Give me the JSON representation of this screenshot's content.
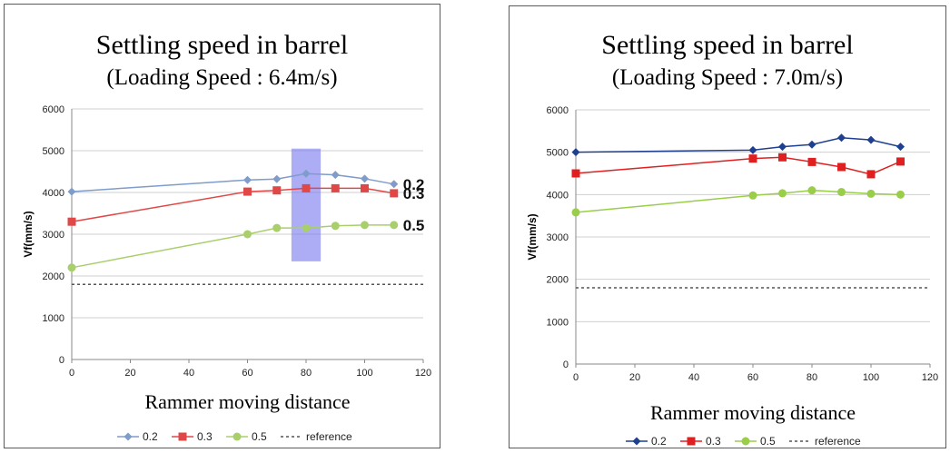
{
  "charts": [
    {
      "id": "left",
      "title": "Settling speed in barrel",
      "subtitle": "(Loading Speed : 6.4m/s)",
      "chart_data": {
        "type": "line",
        "title": "Settling speed in barrel",
        "subtitle": "(Loading Speed : 6.4m/s)",
        "xlabel": "Rammer moving distance",
        "ylabel": "Vf(mm/s)",
        "xlim": [
          0,
          120
        ],
        "ylim": [
          0,
          6000
        ],
        "xticks": [
          0,
          20,
          40,
          60,
          80,
          100,
          120
        ],
        "yticks": [
          0,
          1000,
          2000,
          3000,
          4000,
          5000,
          6000
        ],
        "grid": "horizontal",
        "legend_position": "bottom",
        "series": [
          {
            "name": "0.2",
            "color": "#7f9ccb",
            "marker": "diamond",
            "x": [
              0,
              60,
              70,
              80,
              90,
              100,
              110
            ],
            "y": [
              4020,
              4300,
              4320,
              4450,
              4420,
              4330,
              4200
            ]
          },
          {
            "name": "0.3",
            "color": "#e04848",
            "marker": "square",
            "x": [
              0,
              60,
              70,
              80,
              90,
              100,
              110
            ],
            "y": [
              3300,
              4020,
              4050,
              4100,
              4100,
              4100,
              3980
            ]
          },
          {
            "name": "0.5",
            "color": "#a8cf6c",
            "marker": "circle",
            "x": [
              0,
              60,
              70,
              80,
              90,
              100,
              110
            ],
            "y": [
              2200,
              3000,
              3150,
              3150,
              3200,
              3220,
              3220
            ]
          }
        ],
        "reference": {
          "name": "reference",
          "y": 1800,
          "color": "#555555"
        },
        "annotations": [
          "0.2",
          "0.3",
          "0.5"
        ],
        "highlight": {
          "x": [
            75,
            85
          ],
          "y": [
            2350,
            5050
          ],
          "color": "#7777ee"
        }
      }
    },
    {
      "id": "right",
      "title": "Settling speed in barrel",
      "subtitle": "(Loading Speed : 7.0m/s)",
      "chart_data": {
        "type": "line",
        "title": "Settling speed in barrel",
        "subtitle": "(Loading Speed : 7.0m/s)",
        "xlabel": "Rammer moving distance",
        "ylabel": "Vf(mm/s)",
        "xlim": [
          0,
          120
        ],
        "ylim": [
          0,
          6000
        ],
        "xticks": [
          0,
          20,
          40,
          60,
          80,
          100,
          120
        ],
        "yticks": [
          0,
          1000,
          2000,
          3000,
          4000,
          5000,
          6000
        ],
        "grid": "horizontal",
        "legend_position": "bottom",
        "series": [
          {
            "name": "0.2",
            "color": "#1f3f8f",
            "marker": "diamond",
            "x": [
              0,
              60,
              70,
              80,
              90,
              100,
              110
            ],
            "y": [
              5000,
              5050,
              5130,
              5180,
              5340,
              5290,
              5130
            ]
          },
          {
            "name": "0.3",
            "color": "#e02020",
            "marker": "square",
            "x": [
              0,
              60,
              70,
              80,
              90,
              100,
              110
            ],
            "y": [
              4500,
              4850,
              4880,
              4770,
              4650,
              4480,
              4780
            ]
          },
          {
            "name": "0.5",
            "color": "#9acd4a",
            "marker": "circle",
            "x": [
              0,
              60,
              70,
              80,
              90,
              100,
              110
            ],
            "y": [
              3580,
              3980,
              4030,
              4100,
              4060,
              4020,
              4000
            ]
          }
        ],
        "reference": {
          "name": "reference",
          "y": 1800,
          "color": "#555555"
        }
      }
    }
  ]
}
